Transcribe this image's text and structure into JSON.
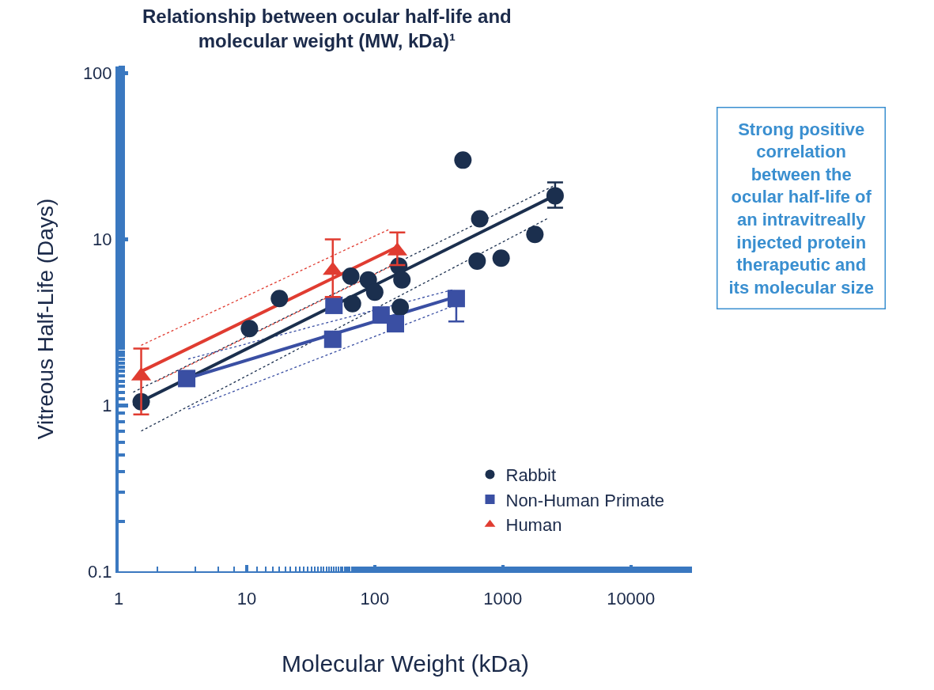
{
  "chart_data": {
    "type": "scatter",
    "title": "Relationship between ocular half-life and\nmolecular weight (MW, kDa)¹",
    "xlabel": "Molecular Weight (kDa)",
    "ylabel": "Vitreous Half-Life (Days)",
    "log": "xy",
    "xlim": [
      1,
      30000
    ],
    "ylim": [
      0.1,
      110
    ],
    "xticks": [
      1,
      10,
      100,
      1000,
      10000
    ],
    "yticks": [
      0.1,
      1,
      10,
      100
    ],
    "legend": "bottom right",
    "annotations": [
      "Strong positive\ncorrelation\nbetween the\nocular half-life of\nan intravitreally\ninjected protein\ntherapeutic and\nits molecular size"
    ],
    "series": [
      {
        "type": "line",
        "color": "#1b2f4e",
        "line_style": "dotted",
        "x": [
          1.3,
          2500
        ],
        "values": [
          1.2,
          21
        ]
      },
      {
        "type": "line",
        "color": "#1b2f4e",
        "line_style": "dotted",
        "x": [
          1.5,
          2300
        ],
        "values": [
          0.7,
          13.5
        ]
      },
      {
        "type": "line",
        "color": "#e03c31",
        "line_style": "dotted",
        "x": [
          1.5,
          130
        ],
        "values": [
          2.3,
          11.5
        ]
      },
      {
        "type": "line",
        "color": "#e03c31",
        "line_style": "dotted",
        "x": [
          2,
          140
        ],
        "values": [
          1.4,
          7
        ]
      },
      {
        "type": "line",
        "color": "#3a4fa3",
        "line_style": "dotted",
        "x": [
          3.5,
          420
        ],
        "values": [
          1.9,
          5
        ]
      },
      {
        "type": "line",
        "color": "#3a4fa3",
        "line_style": "dotted",
        "x": [
          3.5,
          420
        ],
        "values": [
          0.95,
          4
        ]
      },
      {
        "type": "line",
        "color": "#1b2f4e",
        "line_style": "solid",
        "x": [
          1.3,
          2600
        ],
        "values": [
          1.0,
          18.5
        ]
      },
      {
        "type": "line",
        "color": "#3a4fa3",
        "line_style": "solid",
        "x": [
          3.4,
          430
        ],
        "values": [
          1.45,
          4.5
        ]
      },
      {
        "type": "line",
        "color": "#e03c31",
        "line_style": "solid",
        "x": [
          1.5,
          150
        ],
        "values": [
          1.6,
          9
        ]
      },
      {
        "name": "Rabbit",
        "marker": "circle",
        "color": "#1b2f4e",
        "x": [
          1.5,
          10.5,
          18,
          65,
          89,
          67,
          100,
          154,
          163,
          158,
          488,
          660,
          630,
          970,
          1780,
          2560
        ],
        "values": [
          1.05,
          2.9,
          4.4,
          6.0,
          5.7,
          4.1,
          4.8,
          6.9,
          5.7,
          3.9,
          30,
          13.3,
          7.4,
          7.7,
          10.7,
          18.3
        ],
        "errors": [
          null,
          null,
          null,
          null,
          null,
          null,
          null,
          null,
          null,
          null,
          null,
          null,
          null,
          null,
          null,
          [
            15.5,
            22
          ]
        ]
      },
      {
        "name": "Non-Human Primate",
        "marker": "square",
        "color": "#3a4fa3",
        "x": [
          3.4,
          47,
          48,
          112,
          145,
          433
        ],
        "values": [
          1.45,
          2.5,
          4.0,
          3.5,
          3.1,
          4.4
        ],
        "errors": [
          null,
          null,
          null,
          null,
          null,
          [
            3.2,
            4.4
          ]
        ]
      },
      {
        "name": "Human",
        "marker": "triangle",
        "color": "#e03c31",
        "x": [
          1.5,
          47,
          150
        ],
        "values": [
          1.5,
          6.5,
          8.5
        ],
        "errors": [
          [
            0.88,
            2.2
          ],
          [
            4.5,
            10
          ],
          [
            7,
            11
          ]
        ]
      }
    ]
  }
}
